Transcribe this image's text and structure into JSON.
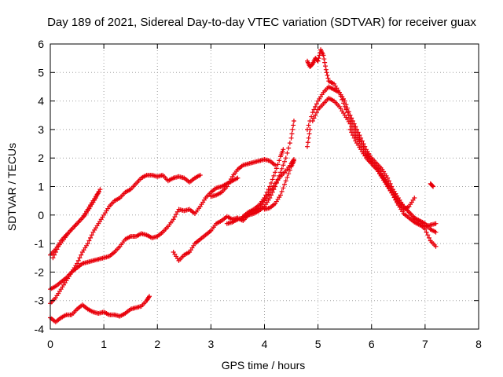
{
  "chart_data": {
    "type": "scatter",
    "title": "Day 189 of 2021, Sidereal Day-to-day VTEC variation (SDTVAR) for receiver guax",
    "xlabel": "GPS time / hours",
    "ylabel": "SDTVAR / TECUs",
    "xlim": [
      0,
      8
    ],
    "ylim": [
      -4,
      6
    ],
    "xticks": [
      "0",
      "1",
      "2",
      "3",
      "4",
      "5",
      "6",
      "7",
      "8"
    ],
    "yticks": [
      "-4",
      "-3",
      "-2",
      "-1",
      "0",
      "1",
      "2",
      "3",
      "4",
      "5",
      "6"
    ],
    "grid": true,
    "marker": "+",
    "color": "#e8000b",
    "tracks": [
      [
        [
          0.0,
          -1.4
        ],
        [
          0.1,
          -1.2
        ],
        [
          0.2,
          -0.9
        ],
        [
          0.3,
          -0.7
        ],
        [
          0.4,
          -0.5
        ],
        [
          0.5,
          -0.3
        ],
        [
          0.6,
          -0.1
        ],
        [
          0.7,
          0.2
        ],
        [
          0.8,
          0.5
        ],
        [
          0.9,
          0.8
        ]
      ],
      [
        [
          0.05,
          -1.5
        ],
        [
          0.15,
          -1.1
        ],
        [
          0.25,
          -0.85
        ],
        [
          0.35,
          -0.6
        ],
        [
          0.45,
          -0.4
        ],
        [
          0.55,
          -0.2
        ],
        [
          0.65,
          0.0
        ],
        [
          0.75,
          0.3
        ],
        [
          0.85,
          0.6
        ],
        [
          0.93,
          0.9
        ]
      ],
      [
        [
          0.0,
          -2.6
        ],
        [
          0.1,
          -2.5
        ],
        [
          0.2,
          -2.35
        ],
        [
          0.3,
          -2.2
        ],
        [
          0.4,
          -2.0
        ],
        [
          0.5,
          -1.85
        ],
        [
          0.6,
          -1.7
        ],
        [
          0.7,
          -1.65
        ],
        [
          0.8,
          -1.6
        ],
        [
          0.9,
          -1.55
        ],
        [
          1.0,
          -1.5
        ],
        [
          1.1,
          -1.45
        ],
        [
          1.2,
          -1.3
        ],
        [
          1.3,
          -1.1
        ],
        [
          1.4,
          -0.85
        ],
        [
          1.5,
          -0.75
        ],
        [
          1.6,
          -0.75
        ],
        [
          1.7,
          -0.65
        ],
        [
          1.8,
          -0.7
        ],
        [
          1.9,
          -0.8
        ],
        [
          2.0,
          -0.75
        ],
        [
          2.1,
          -0.6
        ],
        [
          2.2,
          -0.4
        ],
        [
          2.3,
          -0.15
        ],
        [
          2.4,
          0.2
        ],
        [
          2.5,
          0.15
        ],
        [
          2.6,
          0.2
        ],
        [
          2.7,
          0.05
        ],
        [
          2.8,
          0.3
        ],
        [
          2.9,
          0.6
        ],
        [
          3.0,
          0.8
        ],
        [
          3.1,
          0.95
        ],
        [
          3.2,
          1.0
        ],
        [
          3.3,
          1.1
        ],
        [
          3.4,
          1.2
        ],
        [
          3.5,
          1.3
        ]
      ],
      [
        [
          0.0,
          -3.1
        ],
        [
          0.1,
          -2.9
        ],
        [
          0.2,
          -2.6
        ],
        [
          0.3,
          -2.3
        ],
        [
          0.4,
          -2.0
        ],
        [
          0.5,
          -1.7
        ],
        [
          0.6,
          -1.3
        ],
        [
          0.7,
          -1.0
        ],
        [
          0.8,
          -0.6
        ],
        [
          0.9,
          -0.3
        ],
        [
          1.0,
          0.0
        ],
        [
          1.1,
          0.3
        ],
        [
          1.2,
          0.5
        ],
        [
          1.3,
          0.6
        ],
        [
          1.4,
          0.8
        ],
        [
          1.5,
          0.9
        ],
        [
          1.6,
          1.1
        ],
        [
          1.7,
          1.3
        ],
        [
          1.8,
          1.4
        ],
        [
          1.9,
          1.4
        ],
        [
          2.0,
          1.35
        ],
        [
          2.1,
          1.4
        ],
        [
          2.2,
          1.2
        ],
        [
          2.3,
          1.3
        ],
        [
          2.4,
          1.35
        ],
        [
          2.5,
          1.3
        ],
        [
          2.6,
          1.15
        ],
        [
          2.7,
          1.3
        ],
        [
          2.8,
          1.4
        ]
      ],
      [
        [
          0.0,
          -3.6
        ],
        [
          0.1,
          -3.75
        ],
        [
          0.2,
          -3.6
        ],
        [
          0.3,
          -3.5
        ],
        [
          0.4,
          -3.5
        ],
        [
          0.5,
          -3.3
        ],
        [
          0.6,
          -3.15
        ],
        [
          0.7,
          -3.3
        ],
        [
          0.8,
          -3.4
        ],
        [
          0.9,
          -3.45
        ],
        [
          1.0,
          -3.4
        ],
        [
          1.1,
          -3.5
        ],
        [
          1.2,
          -3.5
        ],
        [
          1.3,
          -3.55
        ],
        [
          1.4,
          -3.45
        ],
        [
          1.5,
          -3.3
        ],
        [
          1.6,
          -3.25
        ],
        [
          1.7,
          -3.2
        ],
        [
          1.8,
          -3.0
        ],
        [
          1.85,
          -2.85
        ]
      ],
      [
        [
          2.3,
          -1.3
        ],
        [
          2.4,
          -1.6
        ],
        [
          2.5,
          -1.4
        ],
        [
          2.6,
          -1.3
        ],
        [
          2.7,
          -1.0
        ],
        [
          2.8,
          -0.85
        ],
        [
          2.9,
          -0.7
        ],
        [
          3.0,
          -0.55
        ],
        [
          3.1,
          -0.3
        ],
        [
          3.2,
          -0.2
        ],
        [
          3.3,
          -0.05
        ],
        [
          3.4,
          -0.15
        ],
        [
          3.5,
          -0.1
        ],
        [
          3.6,
          -0.2
        ],
        [
          3.7,
          0.0
        ],
        [
          3.8,
          0.15
        ],
        [
          3.9,
          0.25
        ],
        [
          4.0,
          0.5
        ],
        [
          4.1,
          0.8
        ],
        [
          4.2,
          1.1
        ],
        [
          4.3,
          1.35
        ],
        [
          4.4,
          1.55
        ],
        [
          4.5,
          1.8
        ],
        [
          4.55,
          1.95
        ]
      ],
      [
        [
          3.0,
          0.65
        ],
        [
          3.1,
          0.7
        ],
        [
          3.2,
          0.8
        ],
        [
          3.3,
          1.0
        ],
        [
          3.4,
          1.35
        ],
        [
          3.5,
          1.6
        ],
        [
          3.6,
          1.75
        ],
        [
          3.7,
          1.8
        ],
        [
          3.8,
          1.85
        ],
        [
          3.9,
          1.9
        ],
        [
          4.0,
          1.95
        ],
        [
          4.1,
          1.9
        ],
        [
          4.2,
          1.75
        ]
      ],
      [
        [
          3.3,
          -0.3
        ],
        [
          3.4,
          -0.25
        ],
        [
          3.5,
          -0.15
        ],
        [
          3.6,
          -0.1
        ],
        [
          3.7,
          0.0
        ],
        [
          3.8,
          0.05
        ],
        [
          3.9,
          0.15
        ],
        [
          4.0,
          0.3
        ],
        [
          4.1,
          0.6
        ],
        [
          4.2,
          1.0
        ],
        [
          4.3,
          1.5
        ],
        [
          4.4,
          2.0
        ],
        [
          4.5,
          2.7
        ],
        [
          4.55,
          3.3
        ]
      ],
      [
        [
          3.6,
          -0.05
        ],
        [
          3.7,
          0.1
        ],
        [
          3.8,
          0.2
        ],
        [
          3.9,
          0.35
        ],
        [
          4.0,
          0.6
        ],
        [
          4.1,
          1.0
        ],
        [
          4.2,
          1.5
        ],
        [
          4.3,
          2.05
        ],
        [
          4.35,
          2.3
        ]
      ],
      [
        [
          4.0,
          0.2
        ],
        [
          4.1,
          0.25
        ],
        [
          4.2,
          0.4
        ],
        [
          4.3,
          0.7
        ],
        [
          4.4,
          1.2
        ],
        [
          4.5,
          1.7
        ],
        [
          4.55,
          1.9
        ]
      ],
      [
        [
          4.8,
          5.4
        ],
        [
          4.85,
          5.2
        ],
        [
          4.9,
          5.3
        ],
        [
          4.95,
          5.5
        ],
        [
          5.0,
          5.4
        ],
        [
          5.05,
          5.8
        ],
        [
          5.1,
          5.6
        ],
        [
          5.15,
          5.1
        ],
        [
          5.2,
          4.7
        ],
        [
          5.3,
          4.6
        ],
        [
          5.4,
          4.3
        ],
        [
          5.5,
          4.0
        ],
        [
          5.6,
          3.5
        ],
        [
          5.7,
          3.1
        ],
        [
          5.8,
          2.7
        ],
        [
          5.9,
          2.3
        ],
        [
          6.0,
          2.0
        ],
        [
          6.1,
          1.8
        ],
        [
          6.2,
          1.6
        ],
        [
          6.3,
          1.3
        ],
        [
          6.4,
          0.9
        ],
        [
          6.5,
          0.6
        ],
        [
          6.6,
          0.3
        ],
        [
          6.7,
          0.1
        ],
        [
          6.8,
          -0.1
        ],
        [
          6.9,
          -0.3
        ],
        [
          7.0,
          -0.5
        ],
        [
          7.1,
          -0.9
        ],
        [
          7.2,
          -1.1
        ]
      ],
      [
        [
          4.8,
          3.0
        ],
        [
          4.9,
          3.6
        ],
        [
          5.0,
          4.0
        ],
        [
          5.1,
          4.3
        ],
        [
          5.2,
          4.5
        ],
        [
          5.3,
          4.4
        ],
        [
          5.4,
          4.3
        ],
        [
          5.5,
          3.8
        ],
        [
          5.6,
          3.4
        ],
        [
          5.7,
          3.0
        ],
        [
          5.8,
          2.6
        ],
        [
          5.9,
          2.2
        ],
        [
          6.0,
          1.9
        ],
        [
          6.1,
          1.7
        ],
        [
          6.2,
          1.4
        ],
        [
          6.3,
          1.1
        ],
        [
          6.4,
          0.8
        ],
        [
          6.5,
          0.5
        ],
        [
          6.6,
          0.3
        ],
        [
          6.7,
          0.1
        ],
        [
          6.8,
          -0.1
        ],
        [
          6.9,
          -0.2
        ],
        [
          7.0,
          -0.3
        ],
        [
          7.1,
          -0.5
        ],
        [
          7.2,
          -0.6
        ]
      ],
      [
        [
          4.9,
          3.3
        ],
        [
          5.0,
          3.7
        ],
        [
          5.1,
          3.9
        ],
        [
          5.2,
          4.1
        ],
        [
          5.3,
          4.0
        ],
        [
          5.4,
          3.8
        ],
        [
          5.5,
          3.5
        ],
        [
          5.6,
          3.2
        ],
        [
          5.7,
          2.8
        ],
        [
          5.8,
          2.5
        ],
        [
          5.9,
          2.1
        ],
        [
          6.0,
          1.8
        ],
        [
          6.1,
          1.6
        ],
        [
          6.2,
          1.3
        ],
        [
          6.3,
          1.0
        ],
        [
          6.4,
          0.7
        ],
        [
          6.5,
          0.4
        ],
        [
          6.6,
          0.2
        ],
        [
          6.7,
          0.3
        ],
        [
          6.8,
          0.6
        ]
      ],
      [
        [
          5.6,
          3.0
        ],
        [
          5.7,
          2.6
        ],
        [
          5.8,
          2.3
        ],
        [
          5.9,
          2.0
        ],
        [
          6.0,
          1.8
        ],
        [
          6.1,
          1.6
        ],
        [
          6.2,
          1.35
        ],
        [
          6.3,
          1.05
        ],
        [
          6.4,
          0.7
        ],
        [
          6.5,
          0.35
        ],
        [
          6.6,
          0.05
        ],
        [
          6.7,
          -0.1
        ],
        [
          6.8,
          -0.25
        ],
        [
          6.9,
          -0.35
        ],
        [
          7.0,
          -0.4
        ],
        [
          7.1,
          -0.35
        ],
        [
          7.2,
          -0.3
        ]
      ],
      [
        [
          7.1,
          1.1
        ],
        [
          7.15,
          1.0
        ]
      ],
      [
        [
          4.8,
          2.4
        ],
        [
          4.85,
          3.0
        ]
      ]
    ]
  }
}
